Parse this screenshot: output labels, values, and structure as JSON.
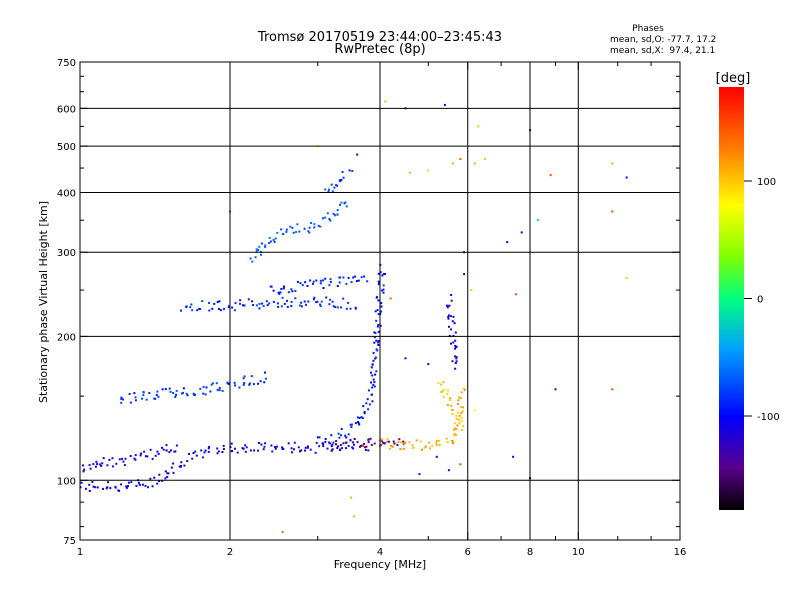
{
  "chart_data": {
    "type": "scatter",
    "title": "Tromsø 20170519 23:44:00–23:45:43",
    "subtitle": "RwPretec (8p)",
    "xlabel": "Frequency [MHz]",
    "ylabel": "Stationary phase Virtual Height [km]",
    "x_scale": "log",
    "y_scale": "log",
    "xlim": [
      1,
      16
    ],
    "ylim": [
      75,
      750
    ],
    "x_ticks": [
      1,
      2,
      4,
      6,
      8,
      10,
      16
    ],
    "y_ticks": [
      75,
      100,
      200,
      300,
      400,
      500,
      600,
      750
    ],
    "x_gridlines": [
      2,
      4,
      6,
      8,
      10
    ],
    "y_gridlines": [
      100,
      200,
      300,
      400,
      500,
      600
    ],
    "grid": true,
    "colorbar": {
      "label": "[deg]",
      "range": [
        -180,
        180
      ],
      "ticks": [
        100,
        0,
        -100
      ],
      "colormap": "rainbow"
    },
    "phases_legend": {
      "heading": "Phases",
      "o_line": "mean, sd,O: -77.7, 17.2",
      "x_line": "mean, sd,X:  97.4, 21.1"
    },
    "traces": [
      {
        "points": [
          [
            1.0,
            97
          ],
          [
            1.2,
            97
          ],
          [
            1.4,
            99
          ],
          [
            1.6,
            109
          ],
          [
            1.8,
            115
          ],
          [
            2.0,
            117
          ],
          [
            2.5,
            117
          ],
          [
            3.0,
            117
          ],
          [
            3.5,
            118
          ],
          [
            3.8,
            118
          ]
        ],
        "phase": -105
      },
      {
        "points": [
          [
            1.0,
            105
          ],
          [
            1.1,
            108
          ],
          [
            1.2,
            110
          ],
          [
            1.3,
            112
          ],
          [
            1.45,
            115
          ],
          [
            1.6,
            118
          ]
        ],
        "phase": -110
      },
      {
        "points": [
          [
            3.2,
            118
          ],
          [
            3.5,
            119
          ],
          [
            3.8,
            120
          ],
          [
            4.1,
            121
          ],
          [
            4.5,
            121
          ]
        ],
        "phase": -140
      },
      {
        "points": [
          [
            4.0,
            120
          ],
          [
            4.2,
            119
          ],
          [
            4.5,
            118
          ],
          [
            5.0,
            119
          ],
          [
            5.5,
            121
          ],
          [
            5.7,
            125
          ],
          [
            5.8,
            140
          ],
          [
            5.85,
            155
          ]
        ],
        "phase": 110
      },
      {
        "points": [
          [
            3.0,
            120
          ],
          [
            3.3,
            124
          ],
          [
            3.6,
            130
          ],
          [
            3.8,
            145
          ],
          [
            3.9,
            170
          ],
          [
            3.95,
            200
          ],
          [
            4.0,
            240
          ],
          [
            4.05,
            280
          ]
        ],
        "phase": -95
      },
      {
        "points": [
          [
            1.6,
            232
          ],
          [
            2.0,
            232
          ],
          [
            2.5,
            235
          ],
          [
            3.0,
            236
          ],
          [
            3.6,
            233
          ]
        ],
        "phase": -85
      },
      {
        "points": [
          [
            2.4,
            250
          ],
          [
            2.8,
            255
          ],
          [
            3.2,
            260
          ],
          [
            3.6,
            265
          ],
          [
            3.8,
            262
          ]
        ],
        "phase": -90
      },
      {
        "points": [
          [
            1.2,
            148
          ],
          [
            1.5,
            152
          ],
          [
            1.8,
            155
          ],
          [
            2.1,
            160
          ],
          [
            2.4,
            165
          ]
        ],
        "phase": -85
      },
      {
        "points": [
          [
            2.2,
            290
          ],
          [
            2.4,
            320
          ],
          [
            2.6,
            330
          ],
          [
            2.9,
            340
          ],
          [
            3.2,
            360
          ],
          [
            3.5,
            380
          ]
        ],
        "phase": -70
      },
      {
        "points": [
          [
            3.1,
            400
          ],
          [
            3.3,
            420
          ],
          [
            3.5,
            440
          ]
        ],
        "phase": -80
      },
      {
        "points": [
          [
            5.5,
            240
          ],
          [
            5.55,
            220
          ],
          [
            5.6,
            200
          ],
          [
            5.65,
            180
          ],
          [
            5.7,
            170
          ]
        ],
        "phase": -110
      },
      {
        "points": [
          [
            5.3,
            160
          ],
          [
            5.5,
            145
          ],
          [
            5.7,
            135
          ],
          [
            5.9,
            128
          ]
        ],
        "phase": 100
      }
    ],
    "scatter": [
      {
        "x": 3.7,
        "y": 118,
        "phase": 150
      },
      {
        "x": 4.0,
        "y": 118,
        "phase": 145
      },
      {
        "x": 3.5,
        "y": 92,
        "phase": 110
      },
      {
        "x": 3.55,
        "y": 84,
        "phase": 110
      },
      {
        "x": 2.55,
        "y": 78,
        "phase": 140
      },
      {
        "x": 4.1,
        "y": 620,
        "phase": 110
      },
      {
        "x": 4.5,
        "y": 600,
        "phase": -110
      },
      {
        "x": 5.4,
        "y": 610,
        "phase": -110
      },
      {
        "x": 4.6,
        "y": 440,
        "phase": 110
      },
      {
        "x": 5.0,
        "y": 445,
        "phase": 100
      },
      {
        "x": 5.6,
        "y": 460,
        "phase": 110
      },
      {
        "x": 5.8,
        "y": 470,
        "phase": 140
      },
      {
        "x": 6.2,
        "y": 460,
        "phase": 110
      },
      {
        "x": 6.3,
        "y": 550,
        "phase": 100
      },
      {
        "x": 6.5,
        "y": 470,
        "phase": 100
      },
      {
        "x": 7.2,
        "y": 315,
        "phase": -110
      },
      {
        "x": 7.7,
        "y": 330,
        "phase": -110
      },
      {
        "x": 8.3,
        "y": 350,
        "phase": -10
      },
      {
        "x": 8.0,
        "y": 540,
        "phase": -110
      },
      {
        "x": 8.8,
        "y": 435,
        "phase": 150
      },
      {
        "x": 11.7,
        "y": 460,
        "phase": 110
      },
      {
        "x": 11.7,
        "y": 365,
        "phase": 150
      },
      {
        "x": 12.5,
        "y": 430,
        "phase": -110
      },
      {
        "x": 12.5,
        "y": 265,
        "phase": 100
      },
      {
        "x": 11.7,
        "y": 155,
        "phase": 150
      },
      {
        "x": 9.0,
        "y": 155,
        "phase": -110
      },
      {
        "x": 7.5,
        "y": 245,
        "phase": 150
      },
      {
        "x": 8.0,
        "y": 101,
        "phase": -110
      },
      {
        "x": 7.4,
        "y": 112,
        "phase": -110
      },
      {
        "x": 6.2,
        "y": 140,
        "phase": 80
      },
      {
        "x": 6.1,
        "y": 250,
        "phase": 100
      },
      {
        "x": 5.9,
        "y": 270,
        "phase": -110
      },
      {
        "x": 5.9,
        "y": 300,
        "phase": -110
      },
      {
        "x": 4.2,
        "y": 240,
        "phase": 140
      },
      {
        "x": 4.5,
        "y": 180,
        "phase": -110
      },
      {
        "x": 5.0,
        "y": 175,
        "phase": -110
      },
      {
        "x": 3.0,
        "y": 500,
        "phase": 60
      },
      {
        "x": 3.6,
        "y": 480,
        "phase": -110
      },
      {
        "x": 2.0,
        "y": 365,
        "phase": 150
      },
      {
        "x": 5.5,
        "y": 105,
        "phase": -110
      },
      {
        "x": 4.8,
        "y": 103,
        "phase": -100
      },
      {
        "x": 5.8,
        "y": 108,
        "phase": 150
      },
      {
        "x": 5.2,
        "y": 112,
        "phase": -110
      }
    ]
  }
}
